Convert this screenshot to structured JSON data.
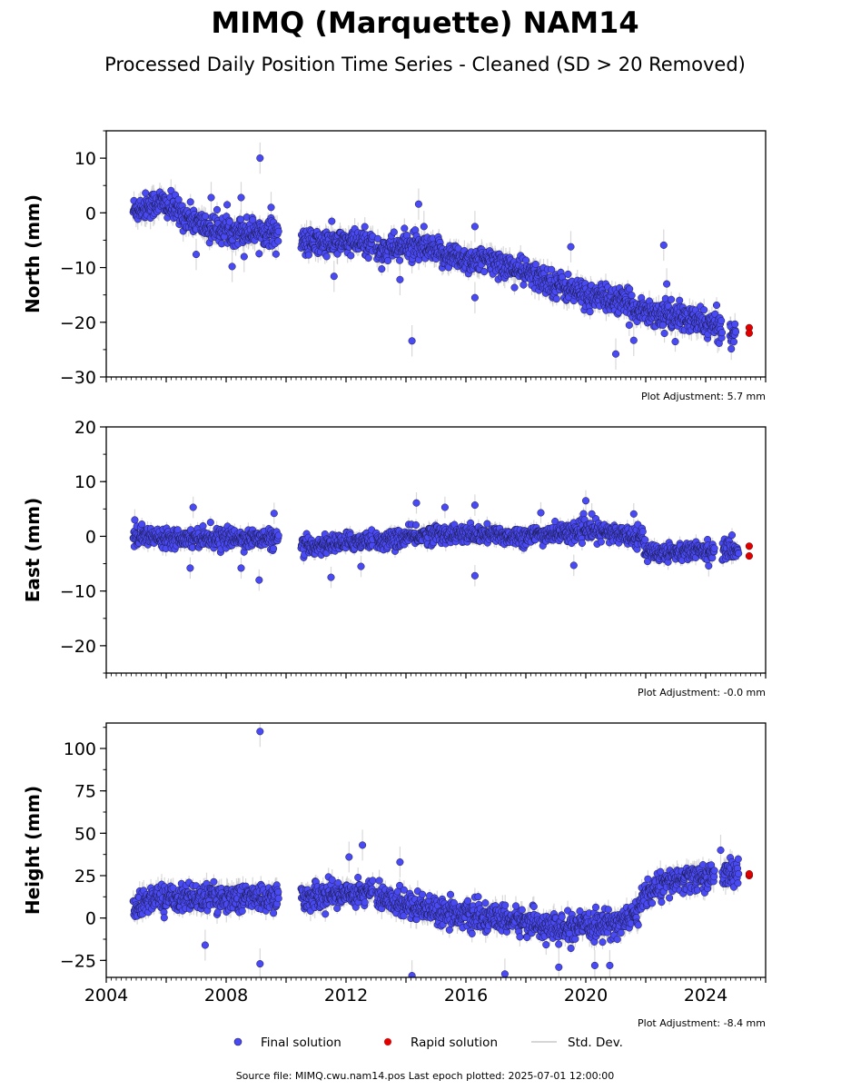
{
  "title": "MIMQ (Marquette) NAM14",
  "subtitle": "Processed Daily Position Time Series - Cleaned (SD > 20 Removed)",
  "footer": "Source file: MIMQ.cwu.nam14.pos  Last epoch plotted: 2025-07-01 12:00:00",
  "colors": {
    "final": "#4a4af4",
    "rapid": "#e00000",
    "stddev": "#c8c8c8",
    "edge": "#1a1a4a"
  },
  "legend": {
    "final": "Final solution",
    "rapid": "Rapid solution",
    "stddev": "Std. Dev."
  },
  "chart_data": [
    {
      "type": "scatter",
      "ylabel": "North (mm)",
      "note": "Plot Adjustment: 5.7 mm",
      "xlim": [
        2004.0,
        2026.0
      ],
      "ylim": [
        -30,
        15
      ],
      "yticks": [
        10,
        0,
        -10,
        -20,
        -30
      ],
      "ytick_labels": [
        "10",
        "0",
        "−10",
        "−20",
        "−30"
      ],
      "xticks": [
        2004,
        2008,
        2012,
        2016,
        2020,
        2024
      ],
      "xtick_labels": [],
      "trend": [
        {
          "x": 2004.9,
          "y": 0.5
        },
        {
          "x": 2005.8,
          "y": 2.0
        },
        {
          "x": 2006.6,
          "y": -0.5
        },
        {
          "x": 2007.5,
          "y": -3.0
        },
        {
          "x": 2009.7,
          "y": -3.5
        },
        {
          "x": 2010.5,
          "y": -5.5
        },
        {
          "x": 2012.9,
          "y": -5.5
        },
        {
          "x": 2013.0,
          "y": -7.0
        },
        {
          "x": 2014.0,
          "y": -6.0
        },
        {
          "x": 2016.0,
          "y": -8.5
        },
        {
          "x": 2017.0,
          "y": -9.0
        },
        {
          "x": 2018.0,
          "y": -11.0
        },
        {
          "x": 2019.0,
          "y": -13.0
        },
        {
          "x": 2020.0,
          "y": -15.0
        },
        {
          "x": 2021.0,
          "y": -16.0
        },
        {
          "x": 2022.0,
          "y": -18.0
        },
        {
          "x": 2023.0,
          "y": -19.0
        },
        {
          "x": 2024.2,
          "y": -20.5
        },
        {
          "x": 2025.0,
          "y": -22.0
        }
      ],
      "gaps": [
        [
          2009.75,
          2010.5
        ],
        [
          2012.9,
          2013.0
        ],
        [
          2024.55,
          2024.8
        ]
      ],
      "scatter": 2.2,
      "outliers": [
        {
          "x": 2009.13,
          "y": 10.0
        },
        {
          "x": 2009.5,
          "y": 1.0
        },
        {
          "x": 2007.5,
          "y": 2.8
        },
        {
          "x": 2008.5,
          "y": 2.8
        },
        {
          "x": 2008.2,
          "y": -9.8
        },
        {
          "x": 2008.6,
          "y": -8.0
        },
        {
          "x": 2007.0,
          "y": -7.6
        },
        {
          "x": 2011.6,
          "y": -11.6
        },
        {
          "x": 2014.2,
          "y": -23.4
        },
        {
          "x": 2014.42,
          "y": 1.6
        },
        {
          "x": 2014.6,
          "y": -2.5
        },
        {
          "x": 2016.3,
          "y": -2.5
        },
        {
          "x": 2016.3,
          "y": -15.5
        },
        {
          "x": 2019.5,
          "y": -6.2
        },
        {
          "x": 2021.0,
          "y": -25.8
        },
        {
          "x": 2021.6,
          "y": -23.3
        },
        {
          "x": 2022.6,
          "y": -5.9
        },
        {
          "x": 2022.7,
          "y": -13.0
        },
        {
          "x": 2013.8,
          "y": -12.2
        }
      ],
      "rapid": [
        {
          "x": 2025.45,
          "y": -21.0
        },
        {
          "x": 2025.45,
          "y": -22.0
        }
      ]
    },
    {
      "type": "scatter",
      "ylabel": "East (mm)",
      "note": "Plot Adjustment: -0.0 mm",
      "xlim": [
        2004.0,
        2026.0
      ],
      "ylim": [
        -25,
        20
      ],
      "yticks": [
        20,
        10,
        0,
        -10,
        -20
      ],
      "ytick_labels": [
        "20",
        "10",
        "0",
        "−10",
        "−20"
      ],
      "xticks": [
        2004,
        2008,
        2012,
        2016,
        2020,
        2024
      ],
      "xtick_labels": [],
      "trend": [
        {
          "x": 2004.9,
          "y": 0.0
        },
        {
          "x": 2009.7,
          "y": -0.5
        },
        {
          "x": 2010.5,
          "y": -2.0
        },
        {
          "x": 2012.9,
          "y": -0.5
        },
        {
          "x": 2013.0,
          "y": -1.0
        },
        {
          "x": 2015.0,
          "y": 0.5
        },
        {
          "x": 2018.0,
          "y": 0.0
        },
        {
          "x": 2020.0,
          "y": 1.0
        },
        {
          "x": 2021.9,
          "y": 0.0
        },
        {
          "x": 2022.0,
          "y": -3.0
        },
        {
          "x": 2024.3,
          "y": -2.5
        },
        {
          "x": 2025.1,
          "y": -2.5
        }
      ],
      "gaps": [
        [
          2009.75,
          2010.5
        ],
        [
          2012.9,
          2013.0
        ],
        [
          2024.3,
          2024.55
        ]
      ],
      "scatter": 1.5,
      "outliers": [
        {
          "x": 2004.95,
          "y": 3.0
        },
        {
          "x": 2006.9,
          "y": 5.3
        },
        {
          "x": 2006.8,
          "y": -5.8
        },
        {
          "x": 2008.5,
          "y": -5.8
        },
        {
          "x": 2009.1,
          "y": -8.0
        },
        {
          "x": 2009.6,
          "y": 4.2
        },
        {
          "x": 2011.5,
          "y": -7.5
        },
        {
          "x": 2012.5,
          "y": -5.5
        },
        {
          "x": 2014.35,
          "y": 6.1
        },
        {
          "x": 2015.3,
          "y": 5.3
        },
        {
          "x": 2016.3,
          "y": 5.7
        },
        {
          "x": 2016.3,
          "y": -7.2
        },
        {
          "x": 2018.5,
          "y": 4.3
        },
        {
          "x": 2019.6,
          "y": -5.3
        },
        {
          "x": 2020.0,
          "y": 6.5
        },
        {
          "x": 2020.2,
          "y": 4.1
        },
        {
          "x": 2021.6,
          "y": 4.1
        },
        {
          "x": 2024.1,
          "y": -5.4
        }
      ],
      "rapid": [
        {
          "x": 2025.45,
          "y": -1.8
        },
        {
          "x": 2025.45,
          "y": -3.6
        }
      ]
    },
    {
      "type": "scatter",
      "ylabel": "Height (mm)",
      "note": "Plot Adjustment: -8.4 mm",
      "xlim": [
        2004.0,
        2026.0
      ],
      "ylim": [
        -35,
        115
      ],
      "yticks": [
        100,
        75,
        50,
        25,
        0,
        -25
      ],
      "ytick_labels": [
        "100",
        "75",
        "50",
        "25",
        "0",
        "−25"
      ],
      "xticks": [
        2004,
        2008,
        2012,
        2016,
        2020,
        2024
      ],
      "xtick_labels": [
        "2004",
        "2008",
        "2012",
        "2016",
        "2020",
        "2024"
      ],
      "trend": [
        {
          "x": 2004.9,
          "y": 5.0
        },
        {
          "x": 2005.5,
          "y": 12.0
        },
        {
          "x": 2009.7,
          "y": 12.0
        },
        {
          "x": 2010.5,
          "y": 12.0
        },
        {
          "x": 2012.9,
          "y": 16.0
        },
        {
          "x": 2013.0,
          "y": 12.0
        },
        {
          "x": 2015.0,
          "y": 5.0
        },
        {
          "x": 2016.5,
          "y": 0.0
        },
        {
          "x": 2018.0,
          "y": -2.0
        },
        {
          "x": 2019.2,
          "y": -7.0
        },
        {
          "x": 2020.0,
          "y": -5.0
        },
        {
          "x": 2021.0,
          "y": -3.0
        },
        {
          "x": 2021.7,
          "y": 2.0
        },
        {
          "x": 2022.0,
          "y": 15.0
        },
        {
          "x": 2023.0,
          "y": 22.0
        },
        {
          "x": 2024.3,
          "y": 25.0
        },
        {
          "x": 2025.1,
          "y": 27.0
        }
      ],
      "gaps": [
        [
          2009.75,
          2010.5
        ],
        [
          2012.9,
          2013.0
        ],
        [
          2024.3,
          2024.55
        ]
      ],
      "scatter": 7.0,
      "outliers": [
        {
          "x": 2009.13,
          "y": 110.0
        },
        {
          "x": 2009.13,
          "y": -27.0
        },
        {
          "x": 2007.3,
          "y": -16.0
        },
        {
          "x": 2012.55,
          "y": 43.0
        },
        {
          "x": 2012.1,
          "y": 36.0
        },
        {
          "x": 2013.8,
          "y": 33.0
        },
        {
          "x": 2014.2,
          "y": -34.0
        },
        {
          "x": 2017.3,
          "y": -33.0
        },
        {
          "x": 2019.1,
          "y": -29.0
        },
        {
          "x": 2020.3,
          "y": -28.0
        },
        {
          "x": 2020.8,
          "y": -28.0
        },
        {
          "x": 2024.5,
          "y": 40.0
        }
      ],
      "rapid": [
        {
          "x": 2025.45,
          "y": 25.0
        },
        {
          "x": 2025.45,
          "y": 26.0
        }
      ]
    }
  ]
}
